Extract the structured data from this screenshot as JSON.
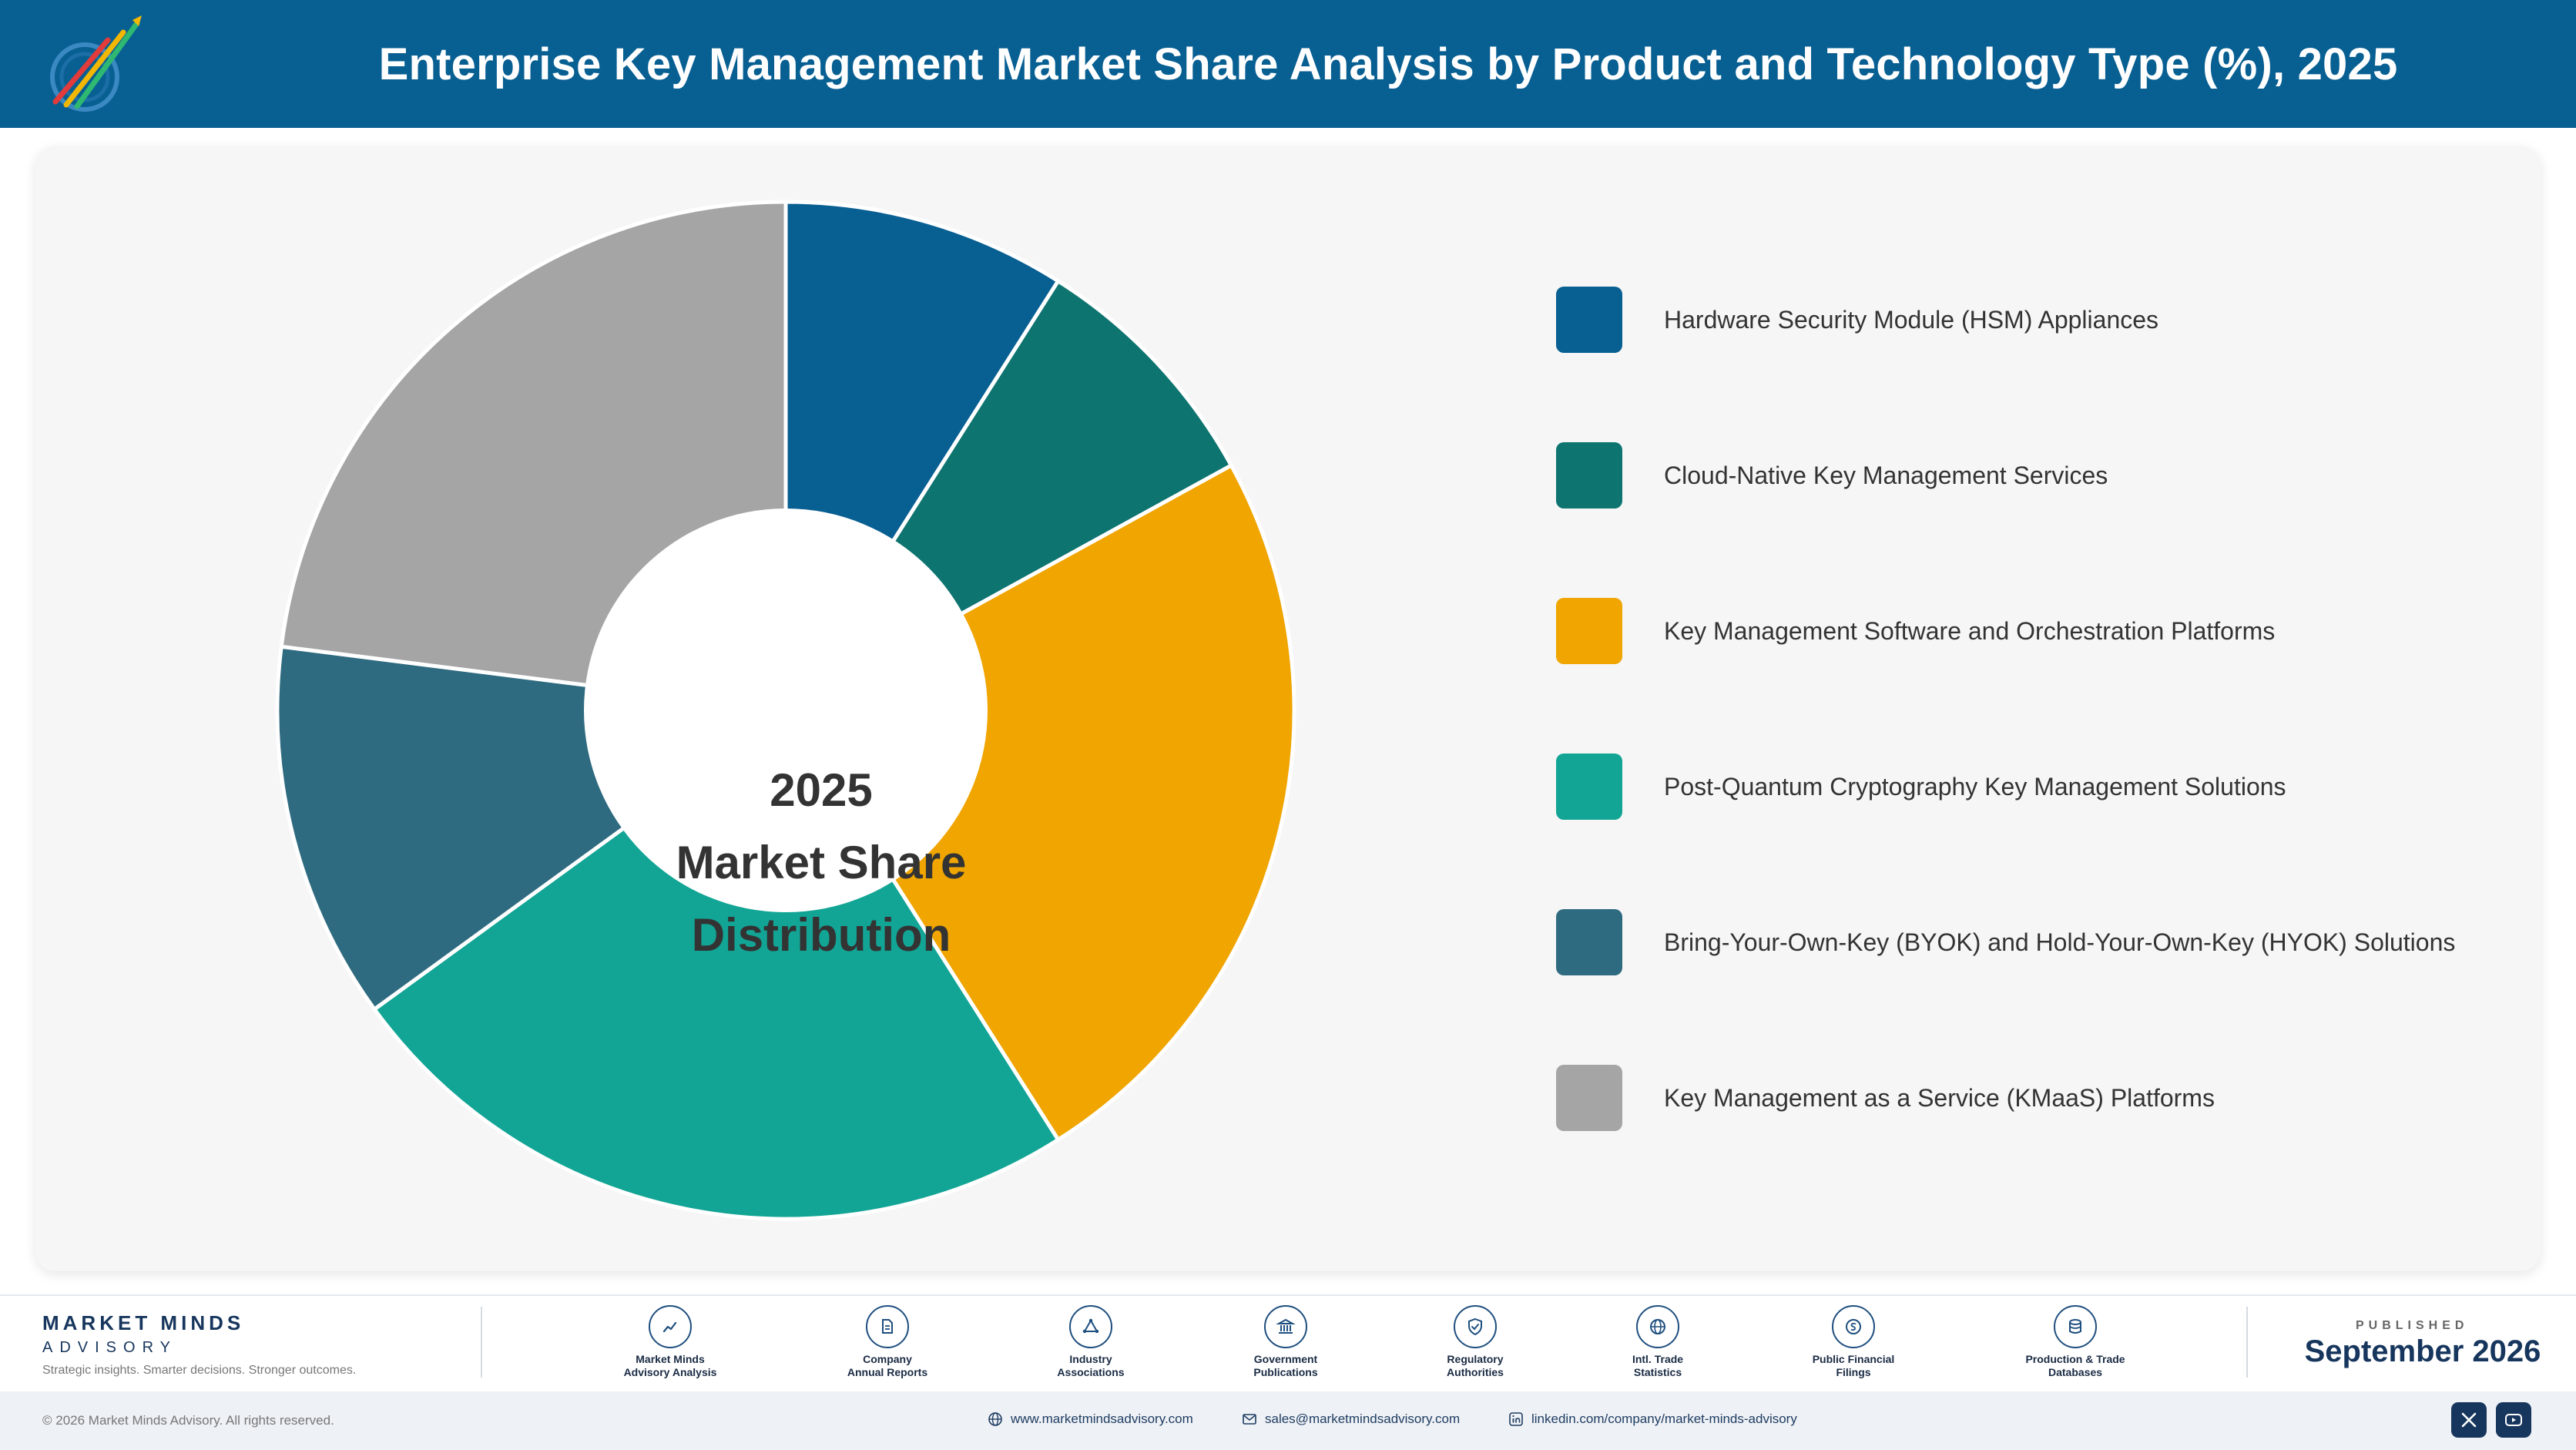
{
  "header": {
    "title": "Enterprise Key Management Market Share Analysis by Product and Technology Type (%), 2025"
  },
  "chart_data": {
    "type": "pie",
    "style": "donut",
    "center_label": [
      "2025",
      "Market Share",
      "Distribution"
    ],
    "legend_position": "right",
    "categories": [
      "Hardware Security Module (HSM) Appliances",
      "Cloud-Native Key Management Services",
      "Key Management Software and Orchestration Platforms",
      "Post-Quantum Cryptography Key Management Solutions",
      "Bring-Your-Own-Key (BYOK) and Hold-Your-Own-Key (HYOK) Solutions",
      "Key Management as a Service (KMaaS) Platforms"
    ],
    "values": [
      9,
      8,
      24,
      24,
      12,
      23
    ],
    "colors": [
      "#085f92",
      "#0e7470",
      "#f0a500",
      "#12a595",
      "#2f6b80",
      "#a5a5a5"
    ]
  },
  "footer": {
    "brand_name": "MARKET MINDS",
    "brand_sub": "ADVISORY",
    "tagline": "Strategic insights. Smarter decisions. Stronger outcomes.",
    "sources": [
      {
        "label": "Market Minds\nAdvisory Analysis",
        "icon": "trend-chart-icon"
      },
      {
        "label": "Company\nAnnual Reports",
        "icon": "document-icon"
      },
      {
        "label": "Industry\nAssociations",
        "icon": "network-icon"
      },
      {
        "label": "Government\nPublications",
        "icon": "government-building-icon"
      },
      {
        "label": "Regulatory\nAuthorities",
        "icon": "shield-check-icon"
      },
      {
        "label": "Intl. Trade\nStatistics",
        "icon": "globe-icon"
      },
      {
        "label": "Public Financial\nFilings",
        "icon": "coin-icon"
      },
      {
        "label": "Production & Trade\nDatabases",
        "icon": "database-icon"
      }
    ],
    "published_label": "PUBLISHED",
    "published_date": "September 2026",
    "copyright": "© 2026 Market Minds Advisory. All rights reserved.",
    "website": "www.marketmindsadvisory.com",
    "email": "sales@marketmindsadvisory.com",
    "linkedin": "linkedin.com/company/market-minds-advisory"
  }
}
